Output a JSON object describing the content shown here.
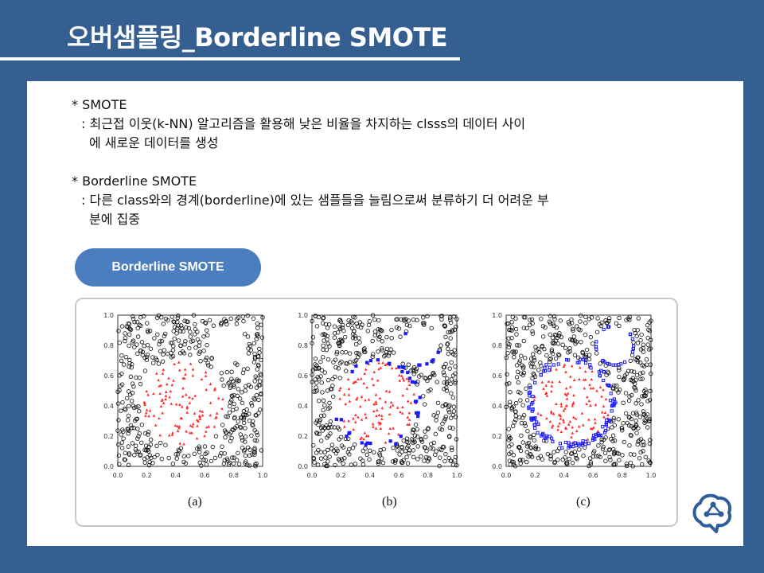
{
  "slide": {
    "title": "오버샘플링_Borderline SMOTE"
  },
  "bullets": [
    {
      "head": "* SMOTE",
      "line1": ": 최근접 이웃(k-NN) 알고리즘을 활용해 낮은 비율을 차지하는 clsss의 데이터 사이",
      "line2": "에 새로운 데이터를 생성"
    },
    {
      "head": "* Borderline SMOTE",
      "line1": ": 다른 class와의 경계(borderline)에 있는 샘플들을 늘림으로써 분류하기 더 어려운 부",
      "line2": "분에 집중"
    }
  ],
  "button": {
    "label": "Borderline SMOTE"
  },
  "figure": {
    "captions": [
      "(a)",
      "(b)",
      "(c)"
    ],
    "axis_ticks": [
      "0.0",
      "0.2",
      "0.4",
      "0.6",
      "0.8",
      "1.0"
    ]
  },
  "colors": {
    "background": "#355f91",
    "accent": "#4a7ebf",
    "majority": "#000000",
    "minority": "#ff2a2a",
    "synthetic": "#1a1aff"
  },
  "logo": {
    "icon": "brain-network-icon"
  }
}
